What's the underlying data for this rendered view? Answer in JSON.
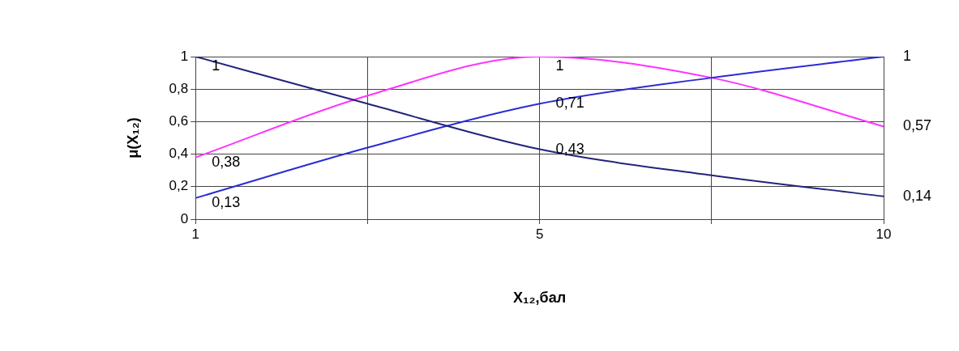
{
  "chart_data": {
    "type": "line",
    "xlabel": "X₁₂,бал",
    "ylabel": "μ(X₁₂)",
    "categories": [
      "1",
      null,
      "5",
      null,
      "10"
    ],
    "series": [
      {
        "color": "#23237a",
        "values": [
          1,
          0.71,
          0.43,
          0.27,
          0.14
        ],
        "value_labels": [
          "1",
          null,
          "0,43",
          null,
          "0,14"
        ]
      },
      {
        "color": "#2b2bd6",
        "values": [
          0.13,
          0.44,
          0.71,
          0.87,
          1
        ],
        "value_labels": [
          "0,13",
          null,
          "0,71",
          null,
          "1"
        ]
      },
      {
        "color": "#ff33ff",
        "values": [
          0.38,
          0.76,
          1,
          0.87,
          0.57
        ],
        "value_labels": [
          "0,38",
          null,
          "1",
          null,
          "0,57"
        ]
      }
    ],
    "ylim": [
      0,
      1
    ],
    "yticks": [
      0,
      {
        "value": 0.2,
        "label": "0,2"
      },
      {
        "value": 0.4,
        "label": "0,4"
      },
      {
        "value": 0.6,
        "label": "0,6"
      },
      {
        "value": 0.8,
        "label": "0,8"
      },
      1
    ],
    "grid": true,
    "legend": false,
    "marker": "none",
    "line_style": "solid"
  }
}
